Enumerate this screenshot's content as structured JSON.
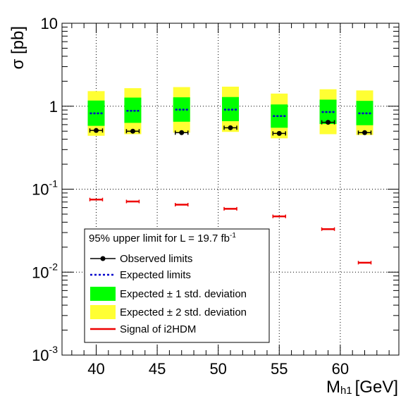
{
  "chart_data": {
    "type": "scatter",
    "title": "",
    "xlabel": "M",
    "xlabel_sub": "h1",
    "xlabel_unit": "[GeV]",
    "ylabel": "σ [pb]",
    "xlim": [
      37.2,
      64.8
    ],
    "ylim": [
      0.001,
      10
    ],
    "yscale": "log",
    "grid": true,
    "x_ticks": [
      {
        "value": 40,
        "label": "40"
      },
      {
        "value": 45,
        "label": "45"
      },
      {
        "value": 50,
        "label": "50"
      },
      {
        "value": 55,
        "label": "55"
      },
      {
        "value": 60,
        "label": "60"
      }
    ],
    "y_ticks": [
      {
        "value": 0.001,
        "base": "10",
        "exp": "-3"
      },
      {
        "value": 0.01,
        "base": "10",
        "exp": "-2"
      },
      {
        "value": 0.1,
        "base": "10",
        "exp": "-1"
      },
      {
        "value": 1,
        "base": "1",
        "exp": ""
      },
      {
        "value": 10,
        "base": "10",
        "exp": ""
      }
    ],
    "masses": [
      40,
      43,
      47,
      51,
      55,
      59,
      62
    ],
    "observed": [
      0.51,
      0.5,
      0.48,
      0.55,
      0.47,
      0.64,
      0.48
    ],
    "expected": [
      0.82,
      0.88,
      0.91,
      0.91,
      0.76,
      0.85,
      0.82
    ],
    "band1_low": [
      0.58,
      0.63,
      0.65,
      0.66,
      0.55,
      0.61,
      0.59
    ],
    "band1_high": [
      1.17,
      1.27,
      1.28,
      1.29,
      1.05,
      1.2,
      1.16
    ],
    "band2_low": [
      0.44,
      0.46,
      0.48,
      0.49,
      0.41,
      0.46,
      0.45
    ],
    "band2_high": [
      1.52,
      1.65,
      1.7,
      1.72,
      1.42,
      1.6,
      1.55
    ],
    "signal": [
      0.075,
      0.071,
      0.065,
      0.058,
      0.047,
      0.033,
      0.013
    ],
    "legend": {
      "placement": "bottom-left",
      "header": "95% upper limit for L = 19.7 fb",
      "header_sup": "-1",
      "entries": [
        {
          "key": "observed",
          "label": "Observed limits"
        },
        {
          "key": "expected",
          "label": "Expected limits"
        },
        {
          "key": "band1",
          "label": "Expected ± 1 std. deviation"
        },
        {
          "key": "band2",
          "label": "Expected ± 2 std. deviation"
        },
        {
          "key": "signal",
          "label": "Signal of i2HDM"
        }
      ]
    },
    "colors": {
      "observed": "#000000",
      "expected": "#0000cc",
      "band1": "#00ff00",
      "band2": "#ffff33",
      "signal": "#ee0000"
    }
  }
}
